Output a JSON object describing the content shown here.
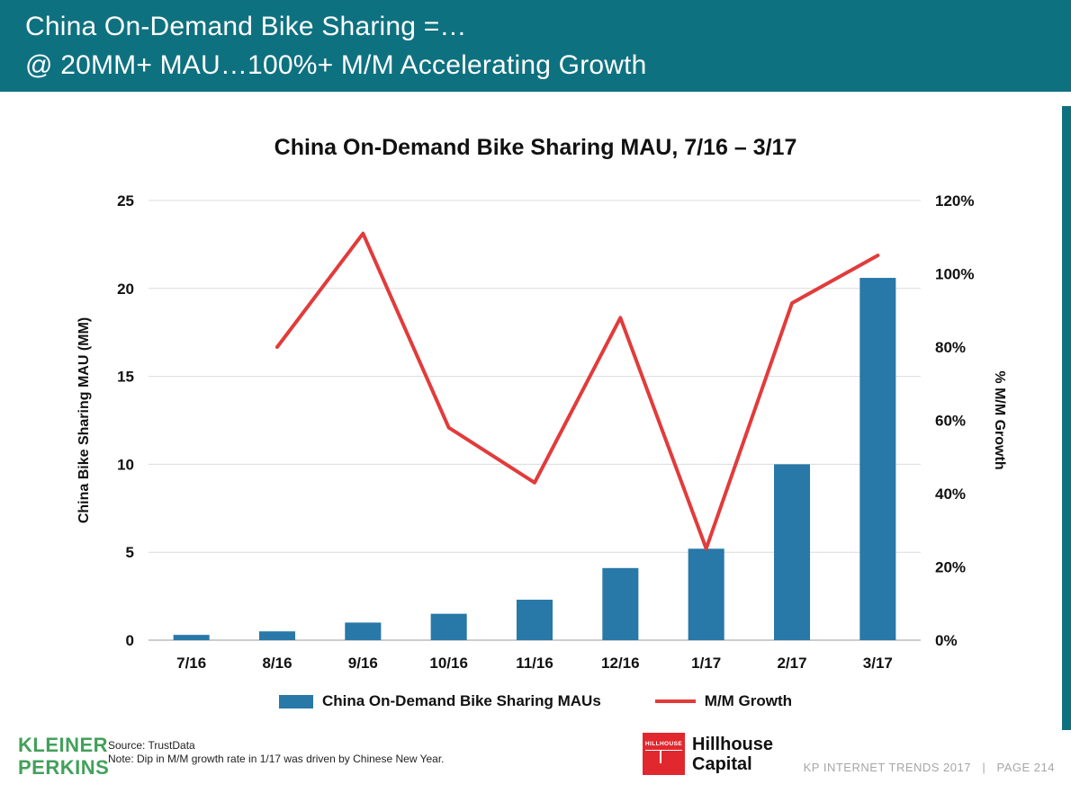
{
  "header": {
    "line1": "China On-Demand Bike Sharing =…",
    "line2": "@ 20MM+ MAU…100%+ M/M Accelerating Growth"
  },
  "chart_data": {
    "type": "combo_bar_line",
    "title": "China On-Demand Bike Sharing MAU, 7/16 – 3/17",
    "categories": [
      "7/16",
      "8/16",
      "9/16",
      "10/16",
      "11/16",
      "12/16",
      "1/17",
      "2/17",
      "3/17"
    ],
    "series": [
      {
        "name": "China On-Demand Bike Sharing MAUs",
        "type": "bar",
        "axis": "left",
        "color": "#2878a8",
        "values": [
          0.3,
          0.5,
          1.0,
          1.5,
          2.3,
          4.1,
          5.2,
          10.0,
          20.6
        ]
      },
      {
        "name": "M/M Growth",
        "type": "line",
        "axis": "right",
        "color": "#e23b3b",
        "values": [
          null,
          80,
          111,
          58,
          43,
          88,
          25,
          92,
          105
        ]
      }
    ],
    "left_axis": {
      "label": "China Bike Sharing MAU (MM)",
      "min": 0,
      "max": 25,
      "tick_step": 5,
      "ticks": [
        "0",
        "5",
        "10",
        "15",
        "20",
        "25"
      ]
    },
    "right_axis": {
      "label": "% M/M Growth",
      "min": 0,
      "max": 120,
      "tick_step": 20,
      "ticks": [
        "0%",
        "20%",
        "40%",
        "60%",
        "80%",
        "100%",
        "120%"
      ]
    },
    "grid": true,
    "legend_position": "bottom"
  },
  "footer": {
    "kleiner_line1": "KLEINER",
    "kleiner_line2": "PERKINS",
    "source_line1": "Source: TrustData",
    "source_line2": "Note: Dip in M/M growth rate in 1/17 was driven by Chinese New Year.",
    "hillhouse_badge": "HILLHOUSE",
    "hillhouse_line1": "Hillhouse",
    "hillhouse_line2": "Capital",
    "page_info": "KP INTERNET TRENDS 2017   |   PAGE 214"
  },
  "colors": {
    "header_teal": "#0e7180",
    "bar_blue": "#2878a8",
    "line_red": "#e23b3b",
    "kp_green": "#43a05a",
    "hillhouse_red": "#e0282e"
  }
}
